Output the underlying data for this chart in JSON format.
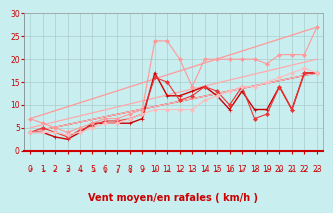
{
  "background_color": "#c8eef0",
  "grid_color": "#aacccc",
  "xlabel": "Vent moyen/en rafales ( km/h )",
  "ylabel_ticks": [
    0,
    5,
    10,
    15,
    20,
    25,
    30
  ],
  "xlim": [
    -0.5,
    23.5
  ],
  "ylim": [
    0,
    30
  ],
  "xtick_labels": [
    "0",
    "1",
    "2",
    "3",
    "4",
    "5",
    "6",
    "7",
    "8",
    "9",
    "10",
    "11",
    "12",
    "13",
    "14",
    "15",
    "16",
    "17",
    "18",
    "19",
    "20",
    "21",
    "22",
    "23"
  ],
  "arrow_color": "#cc0000",
  "series": [
    {
      "x": [
        0,
        1,
        2,
        3,
        4,
        5,
        6,
        7,
        8,
        9,
        10,
        11,
        12,
        13,
        14,
        15,
        16,
        17,
        18,
        19,
        20,
        21,
        22,
        23
      ],
      "y": [
        4,
        4,
        3,
        2.5,
        4,
        6,
        6,
        6,
        6,
        7,
        17,
        12,
        12,
        13,
        14,
        12,
        9,
        13,
        9,
        9,
        14,
        9,
        17,
        17
      ],
      "color": "#cc0000",
      "lw": 1.0,
      "marker": "+",
      "ms": 3.5
    },
    {
      "x": [
        0,
        1,
        2,
        3,
        4,
        5,
        6,
        7,
        8,
        9,
        10,
        11,
        12,
        13,
        14,
        15,
        16,
        17,
        18,
        19,
        20,
        21,
        22,
        23
      ],
      "y": [
        4,
        5,
        4,
        3,
        4.5,
        5.5,
        6.5,
        6.5,
        7,
        8,
        16,
        15,
        11,
        12,
        14,
        13,
        10,
        14,
        7,
        8,
        14,
        9,
        17,
        17
      ],
      "color": "#ee3333",
      "lw": 0.8,
      "marker": "D",
      "ms": 2.0
    },
    {
      "x": [
        0,
        1,
        2,
        3,
        4,
        5,
        6,
        7,
        8,
        9,
        10,
        11,
        12,
        13,
        14,
        15,
        16,
        17,
        18,
        19,
        20,
        21,
        22,
        23
      ],
      "y": [
        7,
        6,
        5,
        4,
        5,
        6,
        7,
        7,
        8,
        9,
        24,
        24,
        20,
        14,
        20,
        20,
        20,
        20,
        20,
        19,
        21,
        21,
        21,
        27
      ],
      "color": "#ff9999",
      "lw": 0.8,
      "marker": "D",
      "ms": 2.0
    },
    {
      "x": [
        0,
        1,
        2,
        3,
        4,
        5,
        6,
        7,
        8,
        9,
        10,
        11,
        12,
        13,
        14,
        15,
        16,
        17,
        18,
        19,
        20,
        21,
        22,
        23
      ],
      "y": [
        4,
        4,
        4,
        3.5,
        4,
        5,
        6,
        6,
        7,
        8,
        9,
        9,
        9,
        9,
        11,
        12,
        13,
        14,
        14,
        15,
        16,
        17,
        18,
        17
      ],
      "color": "#ffbbbb",
      "lw": 0.8,
      "marker": "D",
      "ms": 2.0
    },
    {
      "comment": "trend line lower dark red",
      "x": [
        0,
        23
      ],
      "y": [
        4,
        17
      ],
      "color": "#cc0000",
      "lw": 0.9,
      "marker": null,
      "ms": 0
    },
    {
      "comment": "trend line upper pink",
      "x": [
        0,
        23
      ],
      "y": [
        7,
        27
      ],
      "color": "#ff9999",
      "lw": 0.9,
      "marker": null,
      "ms": 0
    },
    {
      "comment": "trend line mid pink",
      "x": [
        0,
        23
      ],
      "y": [
        4,
        17
      ],
      "color": "#ffbbbb",
      "lw": 0.9,
      "marker": null,
      "ms": 0
    },
    {
      "comment": "trend line mid-low",
      "x": [
        0,
        23
      ],
      "y": [
        5,
        20
      ],
      "color": "#ffaaaa",
      "lw": 0.9,
      "marker": null,
      "ms": 0
    }
  ],
  "wind_arrows": [
    "↗",
    "↘",
    "↓",
    "↓",
    "↘",
    "↘",
    "↓",
    "↓",
    "↓",
    "↘",
    "↘",
    "↘",
    "↘",
    "↘",
    "↘",
    "↘",
    "↘",
    "↘",
    "↘",
    "↘",
    "↘",
    "↘",
    "↘",
    "↘"
  ],
  "tick_color": "#cc0000",
  "label_color": "#cc0000",
  "label_fontsize": 7,
  "tick_fontsize": 5.5
}
